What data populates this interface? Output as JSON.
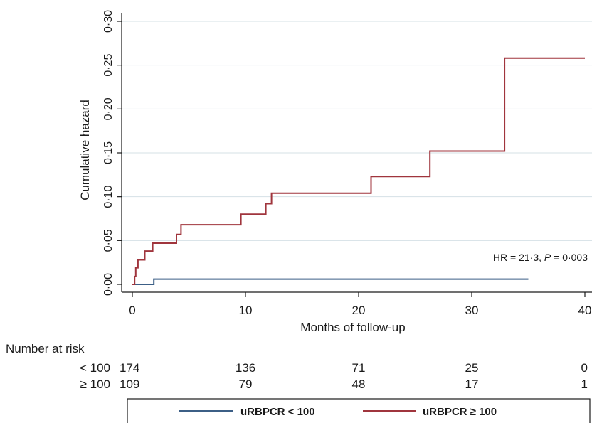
{
  "chart_data": {
    "type": "line",
    "step": true,
    "xlabel": "Months of follow-up",
    "ylabel": "Cumulative hazard",
    "xlim": [
      0,
      40
    ],
    "ylim": [
      0,
      0.3
    ],
    "x_ticks": [
      0,
      10,
      20,
      30,
      40
    ],
    "x_tick_labels": [
      "0",
      "10",
      "20",
      "30",
      "40"
    ],
    "y_ticks": [
      0,
      0.05,
      0.1,
      0.15,
      0.2,
      0.25,
      0.3
    ],
    "y_tick_labels": [
      "0·00",
      "0·05",
      "0·10",
      "0·15",
      "0·20",
      "0·25",
      "0·30"
    ],
    "grid": "horizontal",
    "annotation": {
      "prefix": "HR = 21·3, ",
      "p_label": "P",
      "suffix": " = 0·003"
    },
    "series": [
      {
        "name": "uRBPCR < 100",
        "color": "#3c5f86",
        "points": [
          [
            0,
            0
          ],
          [
            1.9,
            0
          ],
          [
            1.9,
            0.006
          ],
          [
            35.0,
            0.006
          ]
        ]
      },
      {
        "name": "uRBPCR ≥ 100",
        "color": "#a0353d",
        "points": [
          [
            0,
            0
          ],
          [
            0.2,
            0
          ],
          [
            0.2,
            0.009
          ],
          [
            0.3,
            0.009
          ],
          [
            0.3,
            0.019
          ],
          [
            0.5,
            0.019
          ],
          [
            0.5,
            0.028
          ],
          [
            1.1,
            0.028
          ],
          [
            1.1,
            0.038
          ],
          [
            1.8,
            0.038
          ],
          [
            1.8,
            0.047
          ],
          [
            3.9,
            0.047
          ],
          [
            3.9,
            0.057
          ],
          [
            4.3,
            0.057
          ],
          [
            4.3,
            0.068
          ],
          [
            9.6,
            0.068
          ],
          [
            9.6,
            0.08
          ],
          [
            11.8,
            0.08
          ],
          [
            11.8,
            0.092
          ],
          [
            12.3,
            0.092
          ],
          [
            12.3,
            0.104
          ],
          [
            21.1,
            0.104
          ],
          [
            21.1,
            0.123
          ],
          [
            26.3,
            0.123
          ],
          [
            26.3,
            0.152
          ],
          [
            32.9,
            0.152
          ],
          [
            32.9,
            0.258
          ],
          [
            40.0,
            0.258
          ]
        ]
      }
    ]
  },
  "risk_table": {
    "title": "Number at risk",
    "x": [
      0,
      10,
      20,
      30,
      40
    ],
    "rows": [
      {
        "label": "< 100",
        "values": [
          "174",
          "136",
          "71",
          "25",
          "0"
        ]
      },
      {
        "label": "≥ 100",
        "values": [
          "109",
          "79",
          "48",
          "17",
          "1"
        ]
      }
    ]
  },
  "legend": {
    "position": "bottom",
    "items": [
      {
        "label": "uRBPCR < 100",
        "color": "#3c5f86"
      },
      {
        "label": "uRBPCR ≥ 100",
        "color": "#a0353d"
      }
    ]
  }
}
